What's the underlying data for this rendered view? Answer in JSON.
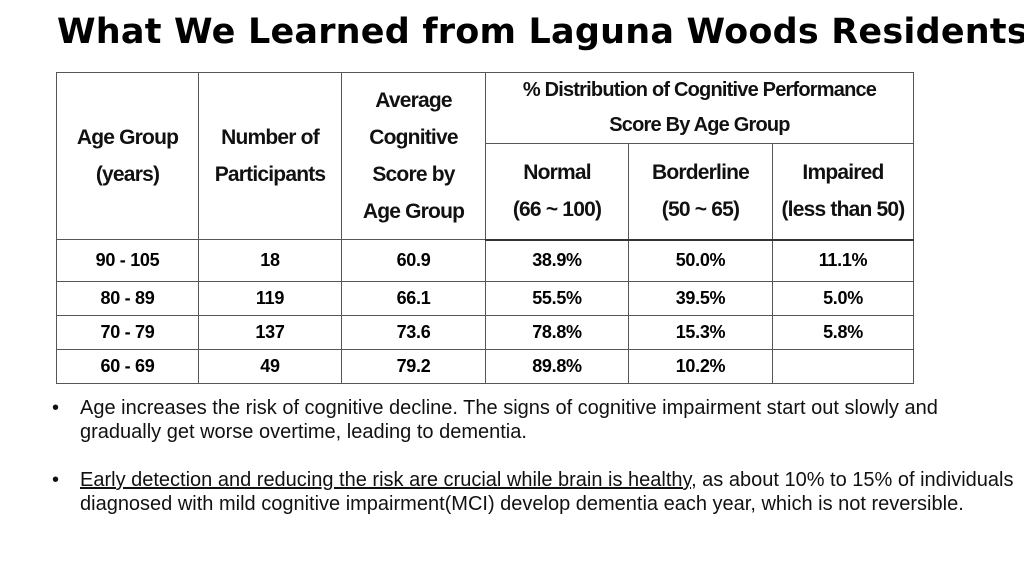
{
  "title": "What We Learned from Laguna Woods Residents",
  "table": {
    "headers": {
      "age_group": [
        "Age Group",
        "(years)"
      ],
      "participants": [
        "Number of",
        "Participants"
      ],
      "avg_score": [
        "Average",
        "Cognitive",
        "Score by",
        "Age Group"
      ],
      "distribution": [
        "% Distribution of Cognitive Performance",
        "Score By Age Group"
      ],
      "normal": [
        "Normal",
        "(66 ~ 100)"
      ],
      "borderline": [
        "Borderline",
        "(50 ~ 65)"
      ],
      "impaired": [
        "Impaired",
        "(less than 50)"
      ]
    },
    "rows": [
      [
        "90 - 105",
        "18",
        "60.9",
        "38.9%",
        "50.0%",
        "11.1%"
      ],
      [
        "80 - 89",
        "119",
        "66.1",
        "55.5%",
        "39.5%",
        "5.0%"
      ],
      [
        "70 - 79",
        "137",
        "73.6",
        "78.8%",
        "15.3%",
        "5.8%"
      ],
      [
        "60 - 69",
        "49",
        "79.2",
        "89.8%",
        "10.2%",
        ""
      ]
    ]
  },
  "bullets": [
    {
      "text": "Age increases the risk of cognitive decline. The signs of cognitive impairment start out slowly and gradually get worse overtime, leading to dementia."
    },
    {
      "underlined": "Early detection and reducing the risk are crucial while brain is healthy",
      "text": ", as about 10% to 15% of individuals diagnosed with mild cognitive impairment(MCI) develop dementia each year, which is not reversible."
    }
  ],
  "bullet_glyph": "•"
}
